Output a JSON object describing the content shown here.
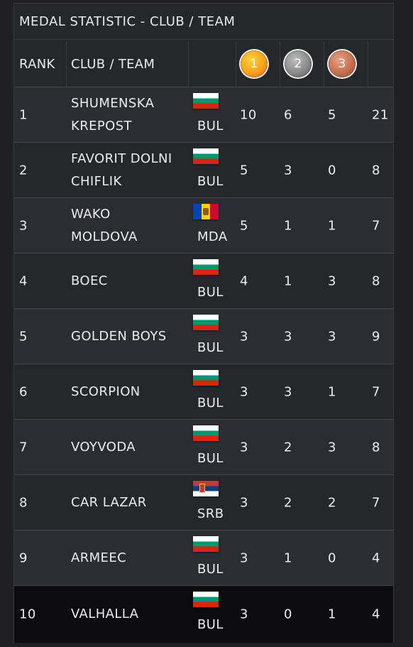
{
  "title": "MEDAL STATISTIC - CLUB / TEAM",
  "header": {
    "rank": "RANK",
    "club": "CLUB / TEAM",
    "gold": "1",
    "silver": "2",
    "bronze": "3"
  },
  "colors": {
    "bg": "#202024",
    "panel": "#26272b",
    "row": "#2c2d32",
    "last_row": "#0c0c0e",
    "bul": [
      "#ffffff",
      "#00966e",
      "#d62612"
    ],
    "srb": [
      "#c6363c",
      "#0c4076",
      "#ffffff"
    ],
    "mda": [
      "#0046ae",
      "#ffd200",
      "#cc092f"
    ]
  },
  "rows": [
    {
      "rank": "1",
      "club": "SHUMENSKA KREPOST",
      "flag": "bul",
      "country": "BUL",
      "gold": "10",
      "silver": "6",
      "bronze": "5",
      "total": "21"
    },
    {
      "rank": "2",
      "club": "FAVORIT DOLNI CHIFLIK",
      "flag": "bul",
      "country": "BUL",
      "gold": "5",
      "silver": "3",
      "bronze": "0",
      "total": "8"
    },
    {
      "rank": "3",
      "club": "WAKO MOLDOVA",
      "flag": "mda",
      "country": "MDA",
      "gold": "5",
      "silver": "1",
      "bronze": "1",
      "total": "7"
    },
    {
      "rank": "4",
      "club": "BOEC",
      "flag": "bul",
      "country": "BUL",
      "gold": "4",
      "silver": "1",
      "bronze": "3",
      "total": "8"
    },
    {
      "rank": "5",
      "club": "GOLDEN BOYS",
      "flag": "bul",
      "country": "BUL",
      "gold": "3",
      "silver": "3",
      "bronze": "3",
      "total": "9"
    },
    {
      "rank": "6",
      "club": "SCORPION",
      "flag": "bul",
      "country": "BUL",
      "gold": "3",
      "silver": "3",
      "bronze": "1",
      "total": "7"
    },
    {
      "rank": "7",
      "club": "VOYVODA",
      "flag": "bul",
      "country": "BUL",
      "gold": "3",
      "silver": "2",
      "bronze": "3",
      "total": "8"
    },
    {
      "rank": "8",
      "club": "CAR LAZAR",
      "flag": "srb",
      "country": "SRB",
      "gold": "3",
      "silver": "2",
      "bronze": "2",
      "total": "7"
    },
    {
      "rank": "9",
      "club": "ARMEEC",
      "flag": "bul",
      "country": "BUL",
      "gold": "3",
      "silver": "1",
      "bronze": "0",
      "total": "4"
    },
    {
      "rank": "10",
      "club": "VALHALLA",
      "flag": "bul",
      "country": "BUL",
      "gold": "3",
      "silver": "0",
      "bronze": "1",
      "total": "4"
    }
  ]
}
